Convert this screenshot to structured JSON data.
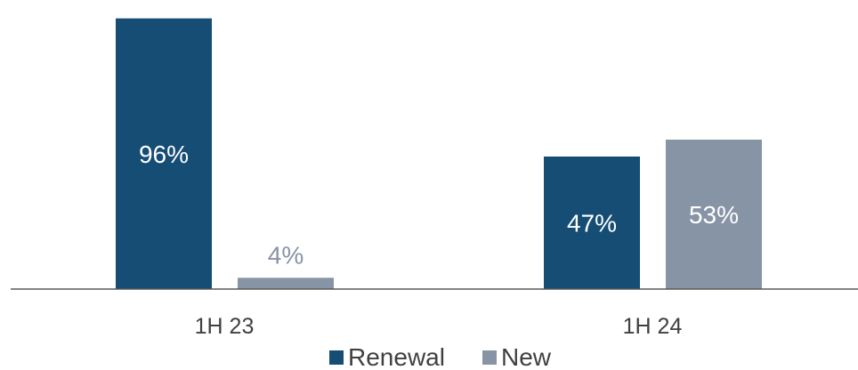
{
  "chart_data": {
    "type": "bar",
    "categories": [
      "1H 23",
      "1H 24"
    ],
    "series": [
      {
        "name": "Renewal",
        "values": [
          96,
          47
        ],
        "color": "#154d75",
        "labels": [
          "96%",
          "47%"
        ]
      },
      {
        "name": "New",
        "values": [
          4,
          53
        ],
        "color": "#8794a6",
        "labels": [
          "4%",
          "53%"
        ]
      }
    ],
    "ylim": [
      0,
      100
    ],
    "grid": false,
    "legend": "bottom-center",
    "title": "",
    "xlabel": "",
    "ylabel": ""
  }
}
